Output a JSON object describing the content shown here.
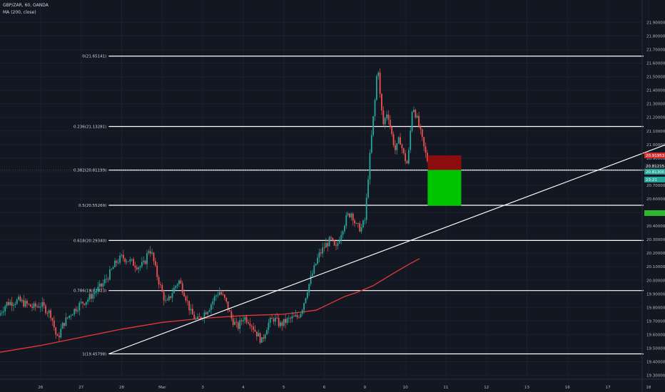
{
  "header": {
    "symbol_line": "GBP/ZAR, 60, OANDA",
    "indicator_line": "MA (200, close)"
  },
  "colors": {
    "background": "#131722",
    "up": "#26a69a",
    "down": "#ef5350",
    "ma": "#e53935",
    "fib": "#ffffff",
    "trendline": "#ffffff",
    "stop_zone": "#8b0d10",
    "target_zone": "#00c400",
    "price_label": "#26a69a",
    "stop_label": "#d32f2f",
    "target_label": "#2fb52f"
  },
  "chart_data": {
    "type": "candlestick",
    "symbol": "GBP/ZAR",
    "interval": "60",
    "source": "OANDA",
    "y_axis": {
      "min": 19.28,
      "max": 21.92,
      "ticks": [
        "21.90000",
        "21.80000",
        "21.70000",
        "21.60000",
        "21.50000",
        "21.40000",
        "21.30000",
        "21.20000",
        "21.10000",
        "21.00000",
        "20.90000",
        "20.80000",
        "20.70000",
        "20.60000",
        "20.50000",
        "20.40000",
        "20.30000",
        "20.20000",
        "20.10000",
        "20.00000",
        "19.90000",
        "19.80000",
        "19.70000",
        "19.60000",
        "19.50000",
        "19.40000",
        "19.30000"
      ]
    },
    "x_axis": {
      "ticks": [
        {
          "label": "26",
          "t": 0.5
        },
        {
          "label": "27",
          "t": 1.5
        },
        {
          "label": "28",
          "t": 2.5
        },
        {
          "label": "Mar",
          "t": 3.5
        },
        {
          "label": "3",
          "t": 4.5
        },
        {
          "label": "4",
          "t": 5.5
        },
        {
          "label": "5",
          "t": 6.5
        },
        {
          "label": "6",
          "t": 7.5
        },
        {
          "label": "9",
          "t": 8.5
        },
        {
          "label": "10",
          "t": 9.5
        },
        {
          "label": "11",
          "t": 10.5
        },
        {
          "label": "12",
          "t": 11.5
        },
        {
          "label": "13",
          "t": 12.5
        },
        {
          "label": "16",
          "t": 13.5
        },
        {
          "label": "17",
          "t": 14.5
        },
        {
          "label": "18",
          "t": 15.5
        }
      ]
    },
    "fib_levels": [
      {
        "label": "0(21.65141)",
        "value": 21.65141
      },
      {
        "label": "0.236(21.13281)",
        "value": 21.13281
      },
      {
        "label": "0.382(20.81199)",
        "value": 20.81199
      },
      {
        "label": "0.5(20.55269)",
        "value": 20.55269
      },
      {
        "label": "0.618(20.29340)",
        "value": 20.2934
      },
      {
        "label": "0.786(19.92423)",
        "value": 19.92423
      },
      {
        "label": "1(19.45798)",
        "value": 19.45798
      }
    ],
    "trendline": {
      "t1": 2.18,
      "v1": 19.458,
      "t2": 16.2,
      "v2": 21.03
    },
    "price_labels": {
      "stop": "20.91953",
      "fib_level": "20.81215",
      "last_price": "20.81300",
      "countdown": "23:21"
    },
    "position": {
      "t_start": 10.05,
      "t_end": 10.88,
      "entry": 20.812,
      "stop": 20.92,
      "target": 20.55
    },
    "price_path": [
      [
        -0.5,
        19.74
      ],
      [
        -0.3,
        19.83
      ],
      [
        0.0,
        19.85
      ],
      [
        0.35,
        19.8
      ],
      [
        0.55,
        19.82
      ],
      [
        0.8,
        19.75
      ],
      [
        0.95,
        19.56
      ],
      [
        1.1,
        19.68
      ],
      [
        1.3,
        19.76
      ],
      [
        1.5,
        19.82
      ],
      [
        1.7,
        19.86
      ],
      [
        1.9,
        19.92
      ],
      [
        2.05,
        19.96
      ],
      [
        2.25,
        20.05
      ],
      [
        2.4,
        20.13
      ],
      [
        2.55,
        20.17
      ],
      [
        2.7,
        20.15
      ],
      [
        2.85,
        20.12
      ],
      [
        2.98,
        20.1
      ],
      [
        3.1,
        20.12
      ],
      [
        3.22,
        20.24
      ],
      [
        3.3,
        20.18
      ],
      [
        3.4,
        20.05
      ],
      [
        3.55,
        19.9
      ],
      [
        3.65,
        19.82
      ],
      [
        3.8,
        19.92
      ],
      [
        3.95,
        20.0
      ],
      [
        4.1,
        19.9
      ],
      [
        4.25,
        19.76
      ],
      [
        4.4,
        19.7
      ],
      [
        4.55,
        19.75
      ],
      [
        4.7,
        19.8
      ],
      [
        4.85,
        19.88
      ],
      [
        4.95,
        19.92
      ],
      [
        5.1,
        19.85
      ],
      [
        5.25,
        19.72
      ],
      [
        5.4,
        19.65
      ],
      [
        5.55,
        19.73
      ],
      [
        5.7,
        19.7
      ],
      [
        5.85,
        19.62
      ],
      [
        6.0,
        19.55
      ],
      [
        6.15,
        19.68
      ],
      [
        6.3,
        19.72
      ],
      [
        6.45,
        19.67
      ],
      [
        6.6,
        19.7
      ],
      [
        6.75,
        19.72
      ],
      [
        6.88,
        19.73
      ],
      [
        6.98,
        19.78
      ],
      [
        7.05,
        19.85
      ],
      [
        7.12,
        19.93
      ],
      [
        7.25,
        20.05
      ],
      [
        7.4,
        20.18
      ],
      [
        7.55,
        20.25
      ],
      [
        7.7,
        20.3
      ],
      [
        7.82,
        20.22
      ],
      [
        7.95,
        20.35
      ],
      [
        8.1,
        20.47
      ],
      [
        8.22,
        20.5
      ],
      [
        8.32,
        20.4
      ],
      [
        8.45,
        20.38
      ],
      [
        8.55,
        20.45
      ],
      [
        8.62,
        20.75
      ],
      [
        8.72,
        21.1
      ],
      [
        8.8,
        21.35
      ],
      [
        8.86,
        21.62
      ],
      [
        8.93,
        21.3
      ],
      [
        9.0,
        21.15
      ],
      [
        9.1,
        21.25
      ],
      [
        9.2,
        21.08
      ],
      [
        9.3,
        20.95
      ],
      [
        9.4,
        21.05
      ],
      [
        9.5,
        20.92
      ],
      [
        9.6,
        20.85
      ],
      [
        9.72,
        21.3
      ],
      [
        9.82,
        21.2
      ],
      [
        9.92,
        21.08
      ],
      [
        10.02,
        20.95
      ],
      [
        10.12,
        20.85
      ],
      [
        10.22,
        20.72
      ],
      [
        10.3,
        20.8
      ]
    ],
    "moving_average": [
      [
        -0.5,
        19.47
      ],
      [
        0.5,
        19.52
      ],
      [
        1.5,
        19.58
      ],
      [
        2.5,
        19.64
      ],
      [
        3.5,
        19.69
      ],
      [
        4.5,
        19.72
      ],
      [
        5.5,
        19.74
      ],
      [
        6.5,
        19.75
      ],
      [
        7.3,
        19.78
      ],
      [
        8.0,
        19.88
      ],
      [
        8.3,
        19.91
      ],
      [
        8.7,
        19.96
      ],
      [
        9.2,
        20.05
      ],
      [
        9.6,
        20.12
      ],
      [
        9.85,
        20.16
      ]
    ]
  }
}
